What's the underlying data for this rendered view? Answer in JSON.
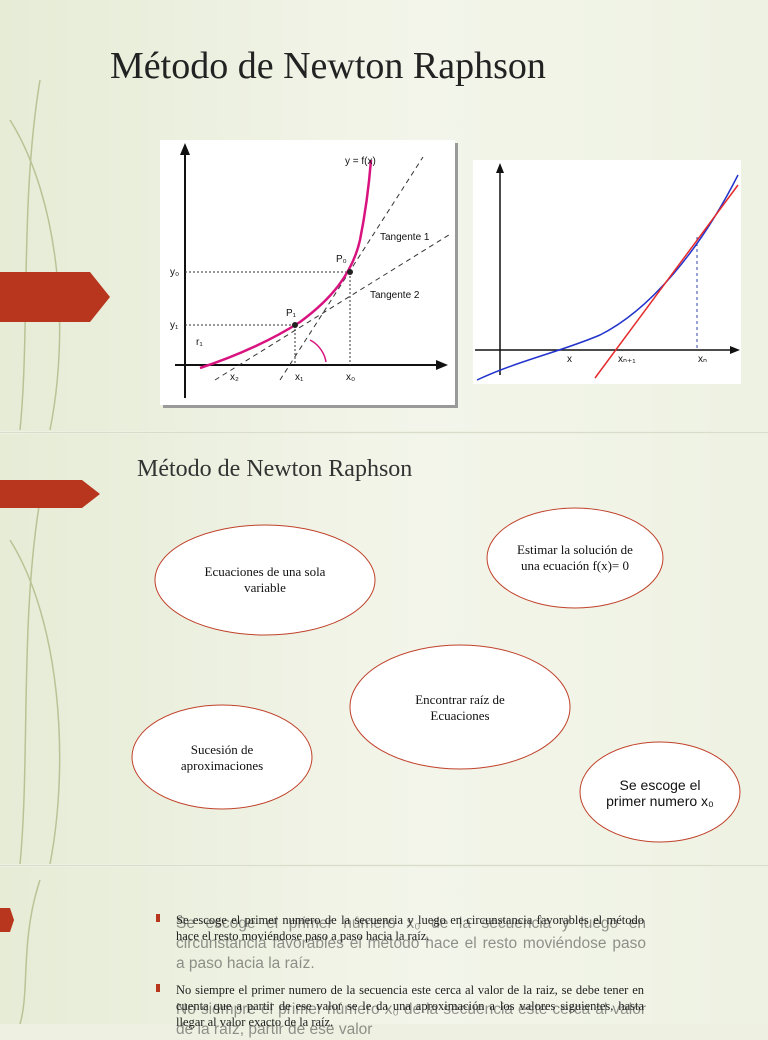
{
  "slides": [
    {
      "title": "Método de Newton Raphson",
      "figure1": {
        "labels": [
          "y = f(x)",
          "Tangente 1",
          "Tangente 2",
          "P₀",
          "P₁",
          "y₀",
          "y₁",
          "r₁",
          "x₂",
          "x₁",
          "x₀"
        ]
      },
      "figure2": {
        "labels": [
          "x",
          "xₙ₊₁",
          "xₙ"
        ]
      }
    },
    {
      "title": "Método de Newton Raphson",
      "nodes": [
        {
          "label": "Ecuaciones de una sola variable"
        },
        {
          "label": "Estimar la solución de una ecuación f(x)= 0"
        },
        {
          "label": "Encontrar raíz  de Ecuaciones"
        },
        {
          "label": "Sucesión de aproximaciones"
        },
        {
          "label": "Se escoge el primer numero x₀"
        }
      ]
    },
    {
      "bullets": [
        "Se escoge el primer numero de la secuencia y luego en circunstancia favorables el método hace el resto moviéndose paso a paso hacia la raíz.",
        "No siempre el primer numero de la secuencia este cerca al  valor de la raiz, se debe tener en cuenta que a partir de ese valor se le da una aproximación a los valores siguientes, hasta llegar al valor exacto de la raíz."
      ],
      "overlay": [
        "Se escoge el primer número x₀ de la secuencia y luego en circunstancia favorables el método hace el resto moviéndose paso a paso hacia la raíz.",
        "No siempre el primer número x₀ de la secuencia este cerca al valor de la raíz, partir de ese valor"
      ]
    }
  ]
}
